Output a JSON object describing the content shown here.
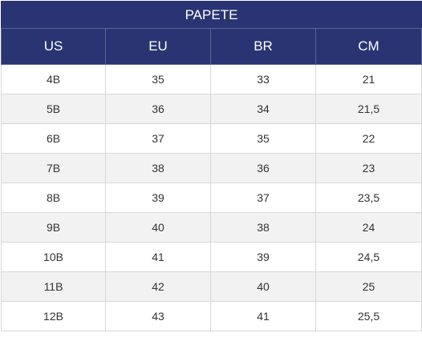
{
  "table": {
    "title": "PAPETE",
    "columns": [
      "US",
      "EU",
      "BR",
      "CM"
    ],
    "rows": [
      [
        "4B",
        "35",
        "33",
        "21"
      ],
      [
        "5B",
        "36",
        "34",
        "21,5"
      ],
      [
        "6B",
        "37",
        "35",
        "22"
      ],
      [
        "7B",
        "38",
        "36",
        "23"
      ],
      [
        "8B",
        "39",
        "37",
        "23,5"
      ],
      [
        "9B",
        "40",
        "38",
        "24"
      ],
      [
        "10B",
        "41",
        "39",
        "24,5"
      ],
      [
        "11B",
        "42",
        "40",
        "25"
      ],
      [
        "12B",
        "43",
        "41",
        "25,5"
      ]
    ]
  },
  "colors": {
    "header_background": "#2a3472",
    "header_text": "#ffffff",
    "stripe": "#f2f2f2",
    "cell_text": "#333333"
  }
}
